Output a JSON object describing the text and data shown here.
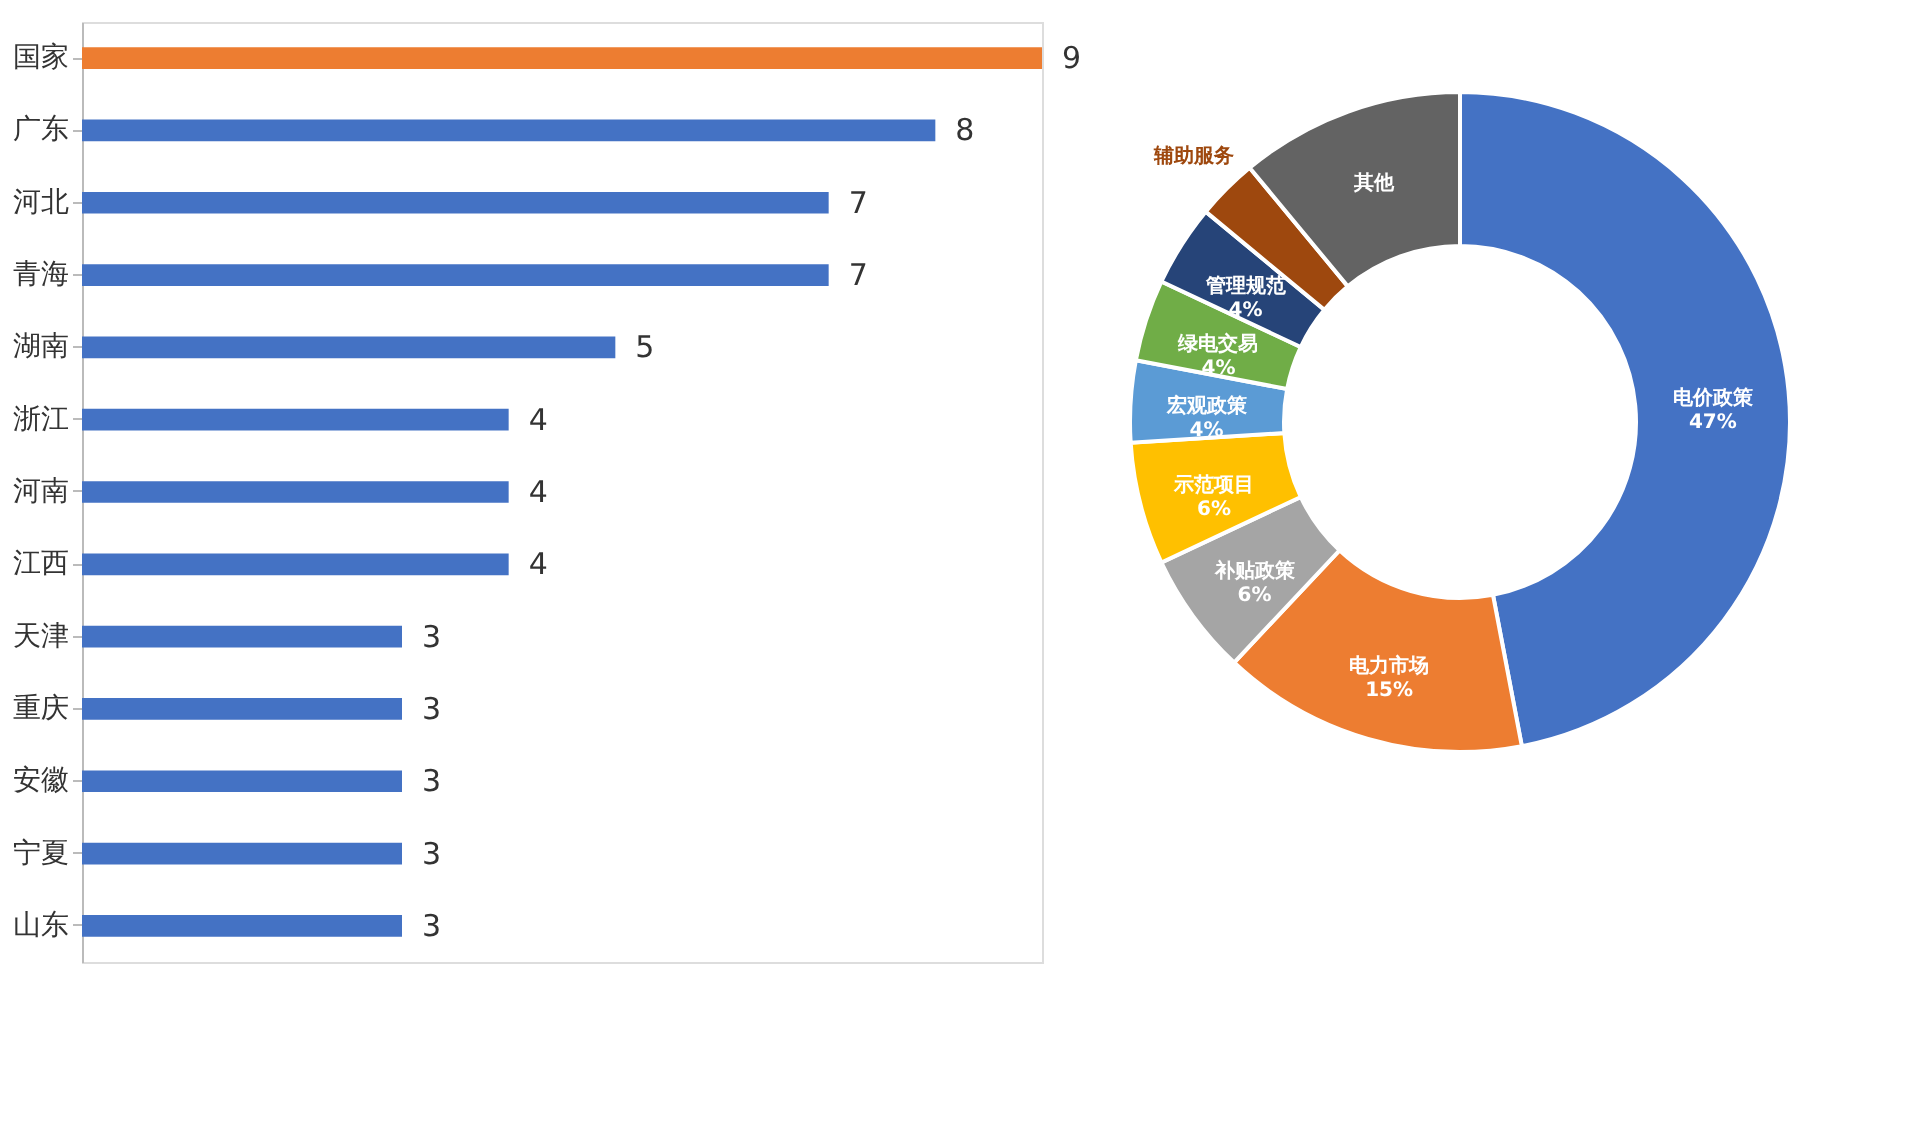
{
  "chart_data": [
    {
      "type": "bar",
      "orientation": "horizontal",
      "data_labels": true,
      "categories": [
        "国家",
        "广东",
        "河北",
        "青海",
        "湖南",
        "浙江",
        "河南",
        "江西",
        "天津",
        "重庆",
        "安徽",
        "宁夏",
        "山东"
      ],
      "values": [
        9,
        8,
        7,
        7,
        5,
        4,
        4,
        4,
        3,
        3,
        3,
        3,
        3
      ],
      "colors": [
        "#ed7d31",
        "#4472c4",
        "#4472c4",
        "#4472c4",
        "#4472c4",
        "#4472c4",
        "#4472c4",
        "#4472c4",
        "#4472c4",
        "#4472c4",
        "#4472c4",
        "#4472c4",
        "#4472c4"
      ]
    },
    {
      "type": "donut",
      "categories": [
        "电价政策",
        "电力市场",
        "补贴政策",
        "示范项目",
        "宏观政策",
        "绿电交易",
        "管理规范",
        "辅助服务",
        "其他"
      ],
      "values": [
        47,
        15,
        6,
        6,
        4,
        4,
        4,
        3,
        11
      ],
      "value_labels": [
        "47%",
        "15%",
        "6%",
        "6%",
        "4%",
        "4%",
        "4%",
        null,
        null
      ],
      "colors": [
        "#4472c4",
        "#ed7d31",
        "#a5a5a5",
        "#ffc000",
        "#5b9bd5",
        "#70ad47",
        "#264478",
        "#9e480e",
        "#636363"
      ]
    }
  ]
}
